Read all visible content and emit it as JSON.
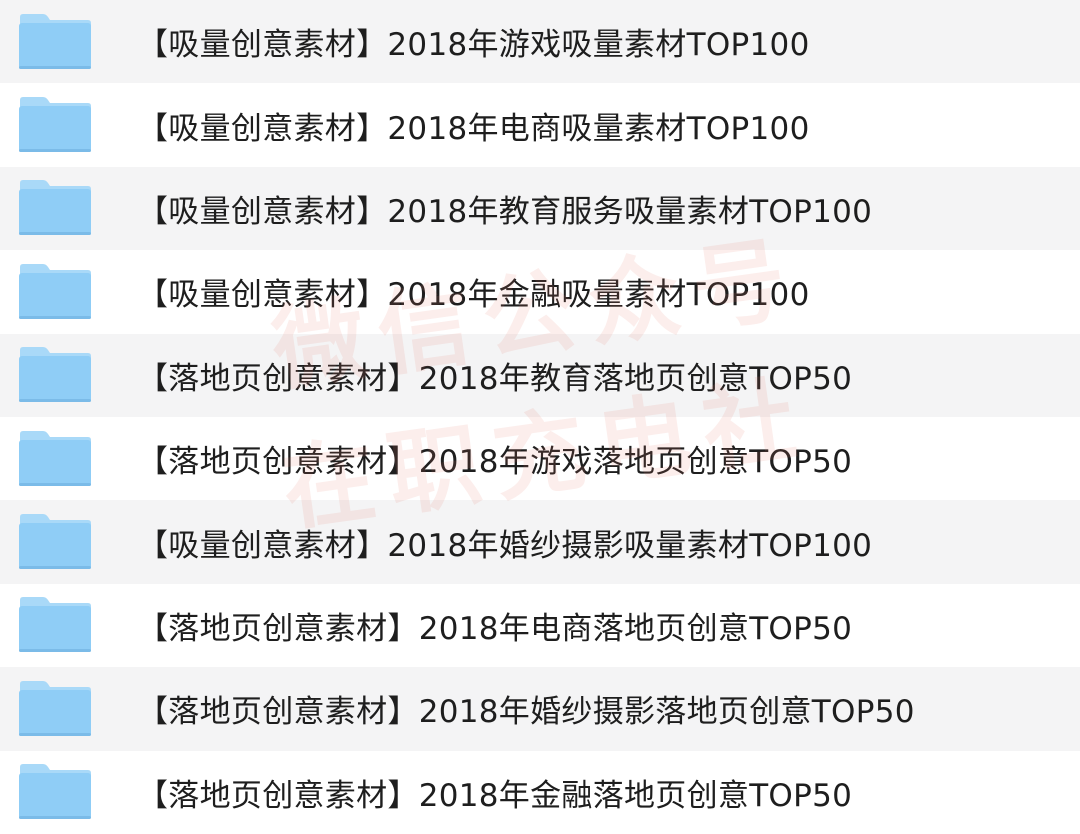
{
  "icon": "folder-icon",
  "colors": {
    "folder": "#8fcdf6",
    "folder_tab": "#a9d9f8",
    "row_alt": "#f4f4f5",
    "watermark": "#e6786e"
  },
  "files": [
    {
      "name": "【吸量创意素材】2018年游戏吸量素材TOP100"
    },
    {
      "name": "【吸量创意素材】2018年电商吸量素材TOP100"
    },
    {
      "name": "【吸量创意素材】2018年教育服务吸量素材TOP100"
    },
    {
      "name": "【吸量创意素材】2018年金融吸量素材TOP100"
    },
    {
      "name": "【落地页创意素材】2018年教育落地页创意TOP50"
    },
    {
      "name": "【落地页创意素材】2018年游戏落地页创意TOP50"
    },
    {
      "name": "【吸量创意素材】2018年婚纱摄影吸量素材TOP100"
    },
    {
      "name": "【落地页创意素材】2018年电商落地页创意TOP50"
    },
    {
      "name": "【落地页创意素材】2018年婚纱摄影落地页创意TOP50"
    },
    {
      "name": "【落地页创意素材】2018年金融落地页创意TOP50"
    }
  ],
  "watermark": {
    "line1": "微信公众号",
    "line2": "在职充电社"
  }
}
